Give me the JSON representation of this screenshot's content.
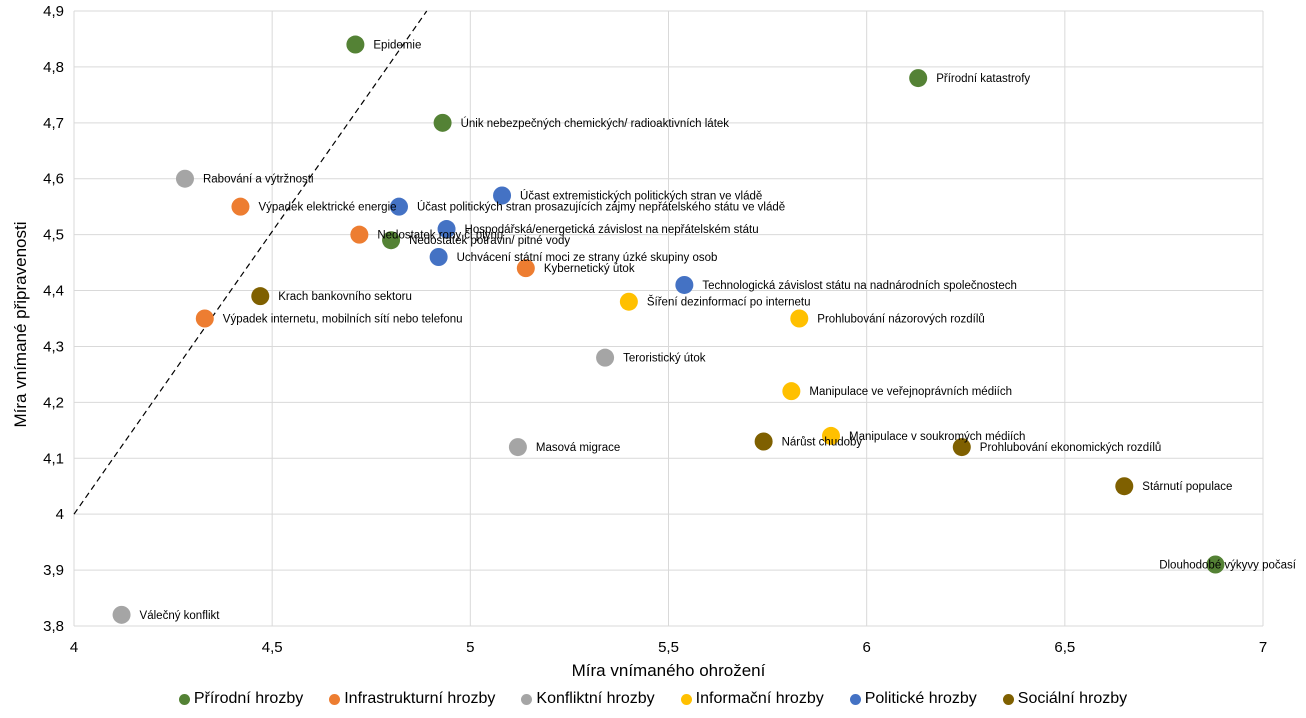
{
  "chart_data": {
    "type": "scatter",
    "xlabel": "Míra vnímaného ohrožení",
    "ylabel": "Míra vnímané připravenosti",
    "xlim": [
      4,
      7
    ],
    "ylim": [
      3.8,
      4.9
    ],
    "x_ticks": [
      4,
      4.5,
      5,
      5.5,
      6,
      6.5,
      7
    ],
    "x_tick_labels": [
      "4",
      "4,5",
      "5",
      "5,5",
      "6",
      "6,5",
      "7"
    ],
    "y_ticks": [
      3.8,
      3.9,
      4.0,
      4.1,
      4.2,
      4.3,
      4.4,
      4.5,
      4.6,
      4.7,
      4.8,
      4.9
    ],
    "y_tick_labels": [
      "3,8",
      "3,9",
      "4",
      "4,1",
      "4,2",
      "4,3",
      "4,4",
      "4,5",
      "4,6",
      "4,7",
      "4,8",
      "4,9"
    ],
    "grid": true,
    "legend_position": "bottom",
    "reference_line": {
      "style": "dashed",
      "from": [
        4.0,
        4.0
      ],
      "to": [
        4.89,
        4.9
      ]
    },
    "series": [
      {
        "name": "Přírodní hrozby",
        "color": "#548235",
        "points": [
          {
            "x": 4.71,
            "y": 4.84,
            "label": "Epidemie"
          },
          {
            "x": 6.13,
            "y": 4.78,
            "label": "Přírodní katastrofy"
          },
          {
            "x": 4.93,
            "y": 4.7,
            "label": "Únik nebezpečných chemických/ radioaktivních látek"
          },
          {
            "x": 4.8,
            "y": 4.49,
            "label": "Nedostatek potravin/ pitné vody"
          },
          {
            "x": 6.88,
            "y": 3.91,
            "label": "Dlouhodobé výkyvy počasí"
          }
        ]
      },
      {
        "name": "Infrastrukturní hrozby",
        "color": "#ED7D31",
        "points": [
          {
            "x": 4.42,
            "y": 4.55,
            "label": "Výpadek elektrické energie"
          },
          {
            "x": 4.72,
            "y": 4.5,
            "label": "Nedostatek ropy či plynu"
          },
          {
            "x": 5.14,
            "y": 4.44,
            "label": "Kybernetický útok"
          },
          {
            "x": 4.33,
            "y": 4.35,
            "label": "Výpadek internetu, mobilních sítí nebo telefonu"
          }
        ]
      },
      {
        "name": "Konfliktní hrozby",
        "color": "#A5A5A5",
        "points": [
          {
            "x": 4.28,
            "y": 4.6,
            "label": "Rabování a výtržnosti"
          },
          {
            "x": 5.34,
            "y": 4.28,
            "label": "Teroristický útok"
          },
          {
            "x": 5.12,
            "y": 4.12,
            "label": "Masová migrace"
          },
          {
            "x": 4.12,
            "y": 3.82,
            "label": "Válečný konflikt"
          }
        ]
      },
      {
        "name": "Informační hrozby",
        "color": "#FFC000",
        "points": [
          {
            "x": 5.4,
            "y": 4.38,
            "label": "Šíření  dezinformací po internetu"
          },
          {
            "x": 5.83,
            "y": 4.35,
            "label": "Prohlubování názorových rozdílů"
          },
          {
            "x": 5.81,
            "y": 4.22,
            "label": "Manipulace ve veřejnoprávních médiích"
          },
          {
            "x": 5.91,
            "y": 4.14,
            "label": "Manipulace v soukromých médiích"
          }
        ]
      },
      {
        "name": "Politické hrozby",
        "color": "#4472C4",
        "points": [
          {
            "x": 5.08,
            "y": 4.57,
            "label": "Účast extremistických politických stran ve vládě"
          },
          {
            "x": 4.82,
            "y": 4.55,
            "label": "Účast politických stran prosazujících zájmy nepřátelského státu ve vládě"
          },
          {
            "x": 4.94,
            "y": 4.51,
            "label": "Hospodářská/energetická závislost na nepřátelském státu"
          },
          {
            "x": 4.92,
            "y": 4.46,
            "label": "Uchvácení státní moci ze strany úzké skupiny osob"
          },
          {
            "x": 5.54,
            "y": 4.41,
            "label": "Technologická závislost státu na nadnárodních společnostech"
          }
        ]
      },
      {
        "name": "Sociální hrozby",
        "color": "#7F6000",
        "points": [
          {
            "x": 4.47,
            "y": 4.39,
            "label": "Krach bankovního sektoru"
          },
          {
            "x": 5.74,
            "y": 4.13,
            "label": "Nárůst chudoby"
          },
          {
            "x": 6.24,
            "y": 4.12,
            "label": "Prohlubování ekonomických rozdílů"
          },
          {
            "x": 6.65,
            "y": 4.05,
            "label": "Stárnutí populace"
          }
        ]
      }
    ]
  }
}
